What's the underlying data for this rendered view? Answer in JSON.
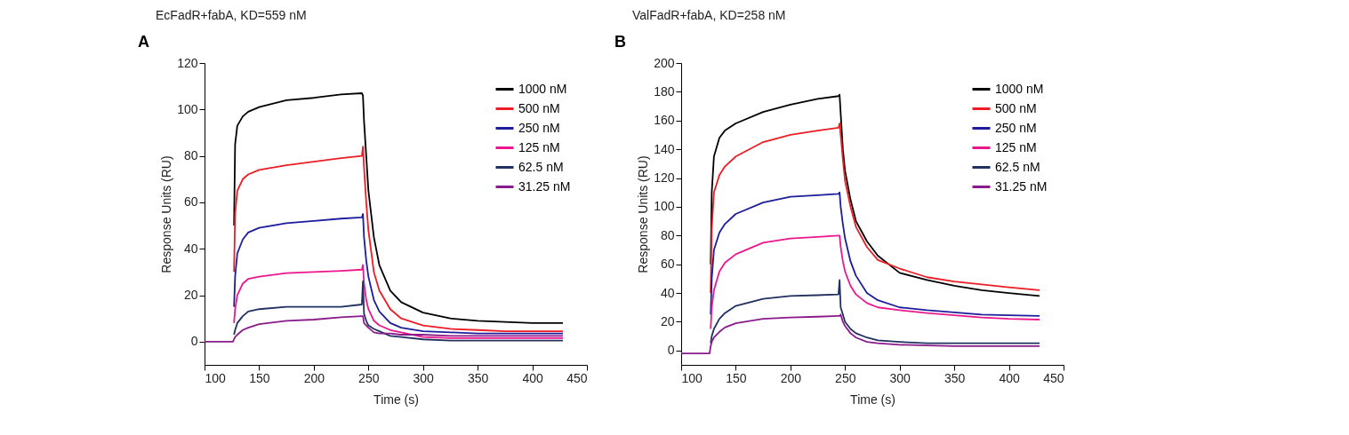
{
  "chart_data": [
    {
      "type": "line",
      "title": "EcFadR+fabA, KD=559 nM",
      "annotations": [
        "A"
      ],
      "xlabel": "Time (s)",
      "ylabel": "Response Units (RU)",
      "xlim": [
        100,
        450
      ],
      "xticks": [
        100,
        150,
        200,
        250,
        300,
        350,
        400,
        450
      ],
      "ylim": [
        -10,
        120
      ],
      "yticks": [
        0,
        20,
        40,
        60,
        80,
        100,
        120
      ],
      "grid": false,
      "legend": "top right",
      "x": [
        100,
        120,
        126,
        127,
        128,
        130,
        135,
        140,
        150,
        175,
        200,
        225,
        244,
        245,
        246,
        248,
        250,
        255,
        260,
        270,
        280,
        300,
        325,
        350,
        375,
        400,
        428
      ],
      "series": [
        {
          "name": "1000 nM",
          "color": "#000000",
          "values": [
            null,
            null,
            null,
            50,
            85,
            93,
            97,
            99,
            101,
            104,
            105,
            106.5,
            107,
            106,
            95,
            80,
            65,
            45,
            33,
            22,
            17,
            12.5,
            10,
            9,
            8.5,
            8,
            8
          ]
        },
        {
          "name": "500 nM",
          "color": "#ee1c24",
          "values": [
            null,
            null,
            null,
            30,
            55,
            65,
            70,
            72,
            74,
            76,
            77.5,
            79,
            80,
            84,
            75,
            60,
            48,
            30,
            22,
            14,
            10,
            7,
            5.5,
            5,
            4.5,
            4.5,
            4.5
          ]
        },
        {
          "name": "250 nM",
          "color": "#1c1c9c",
          "values": [
            null,
            null,
            null,
            15,
            28,
            38,
            44,
            47,
            49,
            51,
            52,
            53,
            53.5,
            55,
            45,
            35,
            28,
            18,
            13,
            8,
            6,
            4.5,
            4,
            3.5,
            3.5,
            3.5,
            3.5
          ]
        },
        {
          "name": "125 nM",
          "color": "#ec178c",
          "values": [
            null,
            null,
            null,
            8,
            14,
            20,
            25,
            27,
            28,
            29.5,
            30,
            30.5,
            31,
            33,
            25,
            18,
            14,
            9,
            7,
            5,
            4,
            2,
            1.5,
            1.5,
            1.5,
            1.5,
            1.5
          ]
        },
        {
          "name": "62.5 nM",
          "color": "#203060",
          "values": [
            null,
            null,
            null,
            3,
            5,
            8,
            11,
            13,
            14,
            15,
            15,
            15,
            16,
            26,
            12,
            9,
            7,
            5.5,
            4.5,
            2.5,
            2,
            1,
            0.5,
            0.5,
            0.5,
            0.5,
            0.5
          ]
        },
        {
          "name": "31.25 nM",
          "color": "#8b1a8b",
          "values": [
            0,
            0,
            0,
            1,
            2,
            3,
            5,
            6,
            7.5,
            9,
            9.5,
            10.5,
            11,
            11,
            8,
            7,
            6,
            4,
            3.5,
            3.5,
            3,
            3,
            2.5,
            2.5,
            2.5,
            2.5,
            2.5
          ]
        }
      ]
    },
    {
      "type": "line",
      "title": "ValFadR+fabA, KD=258 nM",
      "annotations": [
        "B"
      ],
      "xlabel": "Time (s)",
      "ylabel": "Response Units (RU)",
      "xlim": [
        100,
        450
      ],
      "xticks": [
        100,
        150,
        200,
        250,
        300,
        350,
        400,
        450
      ],
      "ylim": [
        -10,
        200
      ],
      "yticks": [
        0,
        20,
        40,
        60,
        80,
        100,
        120,
        140,
        160,
        180,
        200
      ],
      "grid": false,
      "legend": "top right",
      "x": [
        100,
        120,
        126,
        127,
        128,
        130,
        135,
        140,
        150,
        175,
        200,
        225,
        244,
        245,
        246,
        248,
        250,
        255,
        260,
        270,
        280,
        300,
        325,
        350,
        375,
        400,
        428
      ],
      "series": [
        {
          "name": "1000 nM",
          "color": "#000000",
          "values": [
            null,
            null,
            null,
            60,
            110,
            135,
            148,
            153,
            158,
            166,
            171,
            175,
            177,
            178,
            165,
            140,
            125,
            105,
            90,
            76,
            66,
            54,
            49,
            45,
            42,
            40,
            38
          ]
        },
        {
          "name": "500 nM",
          "color": "#ee1c24",
          "values": [
            null,
            null,
            null,
            40,
            85,
            110,
            122,
            128,
            135,
            145,
            150,
            153,
            155,
            158,
            150,
            133,
            118,
            100,
            86,
            72,
            63,
            57,
            51,
            48,
            46,
            44,
            42
          ]
        },
        {
          "name": "250 nM",
          "color": "#1c1c9c",
          "values": [
            null,
            null,
            null,
            25,
            50,
            70,
            82,
            88,
            95,
            103,
            107,
            108,
            109,
            110,
            100,
            88,
            78,
            62,
            52,
            40,
            35,
            30,
            28,
            26.5,
            25,
            24.5,
            24
          ]
        },
        {
          "name": "125 nM",
          "color": "#ec178c",
          "values": [
            null,
            null,
            null,
            15,
            30,
            42,
            55,
            61,
            67,
            75,
            78,
            79,
            80,
            80,
            72,
            62,
            55,
            45,
            39,
            33,
            30,
            28,
            26,
            24.5,
            23,
            22,
            21.5
          ]
        },
        {
          "name": "62.5 nM",
          "color": "#203060",
          "values": [
            null,
            null,
            null,
            5,
            10,
            15,
            22,
            26,
            31,
            36,
            38,
            38.5,
            39,
            49,
            30,
            25,
            20,
            15,
            12,
            9,
            7,
            6,
            5,
            5,
            5,
            5,
            5
          ]
        },
        {
          "name": "31.25 nM",
          "color": "#8b1a8b",
          "values": [
            -2,
            -2,
            -2,
            3,
            6,
            9,
            13,
            16,
            19,
            22,
            23,
            23.5,
            24,
            24,
            25,
            20,
            17,
            12,
            9,
            6,
            5,
            4,
            3.5,
            3,
            3,
            3,
            3
          ]
        }
      ]
    }
  ]
}
